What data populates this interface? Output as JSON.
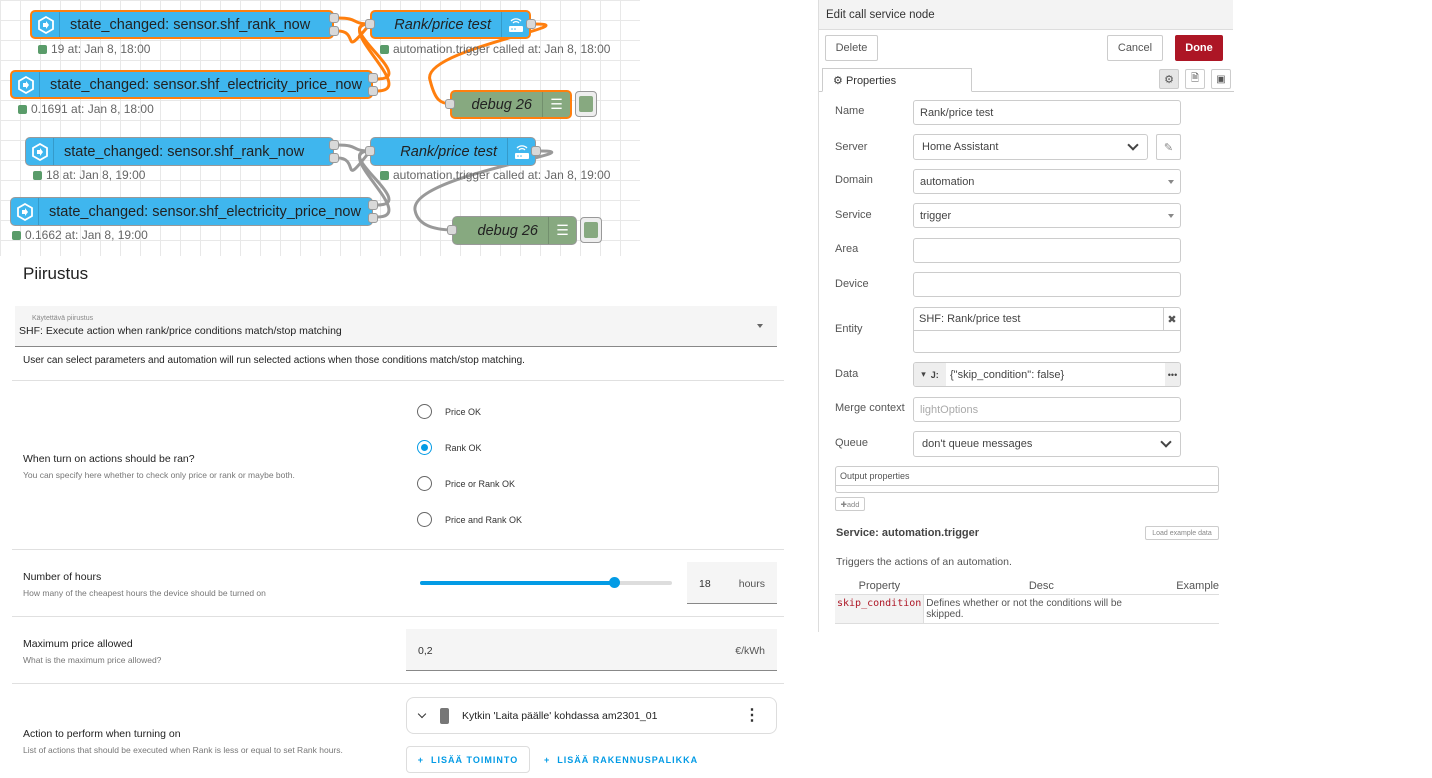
{
  "flow": {
    "groups": [
      {
        "selected": true,
        "rank_node": "state_changed: sensor.shf_rank_now",
        "rank_status": "19 at: Jan 8, 18:00",
        "price_node": "state_changed: sensor.shf_electricity_price_now",
        "price_status": "0.1691 at: Jan 8, 18:00",
        "service_node": "Rank/price test",
        "service_status": "automation.trigger called at: Jan 8, 18:00",
        "debug_node": "debug 26"
      },
      {
        "selected": false,
        "rank_node": "state_changed: sensor.shf_rank_now",
        "rank_status": "18 at: Jan 8, 19:00",
        "price_node": "state_changed: sensor.shf_electricity_price_now",
        "price_status": "0.1662 at: Jan 8, 19:00",
        "service_node": "Rank/price test",
        "service_status": "automation.trigger called at: Jan 8, 19:00",
        "debug_node": "debug 26"
      }
    ],
    "colors": {
      "node": "#3fb6ee",
      "debug": "#87a980",
      "selection": "#ff7f0e",
      "wire": "#999999"
    }
  },
  "blueprint": {
    "title": "Piirustus",
    "select_label": "Käytettävä piirustus",
    "select_value": "SHF: Execute action when rank/price conditions match/stop matching",
    "description": "User can select parameters and automation will run selected actions when those conditions match/stop matching.",
    "when": {
      "title": "When turn on actions should be ran?",
      "desc": "You can specify here whether to check only price or rank or maybe both.",
      "options": [
        "Price OK",
        "Rank OK",
        "Price or Rank OK",
        "Price and Rank OK"
      ],
      "selected": "Rank OK"
    },
    "hours": {
      "title": "Number of hours",
      "desc": "How many of the cheapest hours the device should be turned on",
      "value": "18",
      "unit": "hours",
      "slider_percent": 77
    },
    "max_price": {
      "title": "Maximum price allowed",
      "desc": "What is the maximum price allowed?",
      "value": "0,2",
      "unit": "€/kWh"
    },
    "action": {
      "title": "Action to perform when turning on",
      "desc": "List of actions that should be executed when Rank is less or equal to set Rank hours.",
      "item": "Kytkin 'Laita päälle' kohdassa am2301_01",
      "add_action": "LISÄÄ TOIMINTO",
      "add_block": "LISÄÄ RAKENNUSPALIKKA"
    },
    "accent": "#039be5"
  },
  "editor": {
    "title": "Edit call service node",
    "delete": "Delete",
    "cancel": "Cancel",
    "done": "Done",
    "tab": "Properties",
    "labels": {
      "name": "Name",
      "server": "Server",
      "domain": "Domain",
      "service": "Service",
      "area": "Area",
      "device": "Device",
      "entity": "Entity",
      "data": "Data",
      "merge": "Merge context",
      "queue": "Queue"
    },
    "values": {
      "name": "Rank/price test",
      "server": "Home Assistant",
      "domain": "automation",
      "service": "trigger",
      "entity": "SHF: Rank/price test",
      "data": "{\"skip_condition\": false}",
      "queue": "don't queue messages"
    },
    "merge_placeholder": "lightOptions",
    "output_properties": "Output properties",
    "add": "add",
    "service_title": "Service: automation.trigger",
    "load_example": "Load example data",
    "service_desc": "Triggers the actions of an automation.",
    "table": {
      "headers": [
        "Property",
        "Desc",
        "Example"
      ],
      "rows": [
        {
          "property": "skip_condition",
          "desc": "Defines whether or not the conditions will be skipped.",
          "example": ""
        }
      ]
    },
    "done_color": "#ad1625"
  }
}
